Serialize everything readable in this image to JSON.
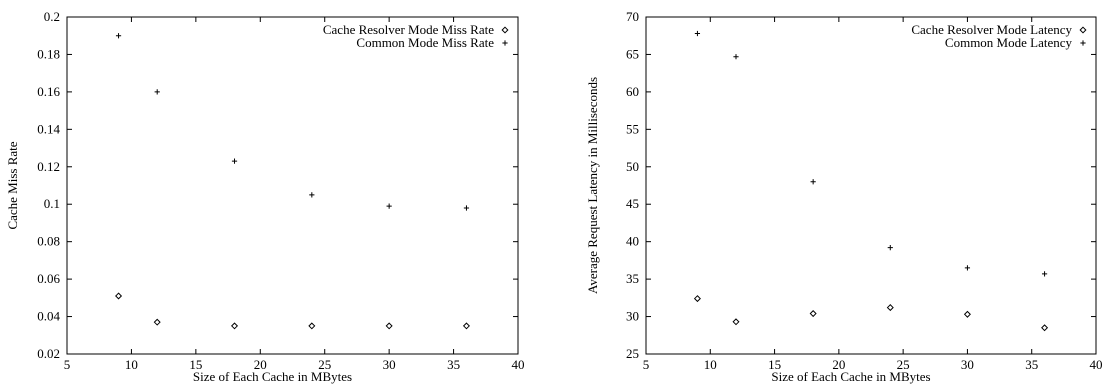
{
  "chart_data": [
    {
      "type": "scatter",
      "title": "",
      "xlabel": "Size of Each Cache in MBytes",
      "ylabel": "Cache Miss Rate",
      "xlim": [
        5,
        40
      ],
      "ylim": [
        0.02,
        0.2
      ],
      "x_ticks": [
        5,
        10,
        15,
        20,
        25,
        30,
        35,
        40
      ],
      "y_ticks": [
        0.02,
        0.04,
        0.06,
        0.08,
        0.1,
        0.12,
        0.14,
        0.16,
        0.18,
        0.2
      ],
      "grid": false,
      "legend_position": "top-right",
      "series": [
        {
          "name": "Cache Resolver Mode Miss Rate",
          "marker": "diamond",
          "points": [
            [
              9,
              0.051
            ],
            [
              12,
              0.037
            ],
            [
              18,
              0.035
            ],
            [
              24,
              0.035
            ],
            [
              30,
              0.035
            ],
            [
              36,
              0.035
            ]
          ]
        },
        {
          "name": "Common Mode Miss Rate",
          "marker": "plus",
          "points": [
            [
              9,
              0.19
            ],
            [
              12,
              0.16
            ],
            [
              18,
              0.123
            ],
            [
              24,
              0.105
            ],
            [
              30,
              0.099
            ],
            [
              36,
              0.098
            ]
          ]
        }
      ]
    },
    {
      "type": "scatter",
      "title": "",
      "xlabel": "Size of Each Cache in MBytes",
      "ylabel": "Average Request Latency in Milliseconds",
      "xlim": [
        5,
        40
      ],
      "ylim": [
        25,
        70
      ],
      "x_ticks": [
        5,
        10,
        15,
        20,
        25,
        30,
        35,
        40
      ],
      "y_ticks": [
        25,
        30,
        35,
        40,
        45,
        50,
        55,
        60,
        65,
        70
      ],
      "grid": false,
      "legend_position": "top-right",
      "series": [
        {
          "name": "Cache Resolver Mode Latency",
          "marker": "diamond",
          "points": [
            [
              9,
              32.4
            ],
            [
              12,
              29.3
            ],
            [
              18,
              30.4
            ],
            [
              24,
              31.2
            ],
            [
              30,
              30.3
            ],
            [
              36,
              28.5
            ]
          ]
        },
        {
          "name": "Common Mode Latency",
          "marker": "plus",
          "points": [
            [
              9,
              67.8
            ],
            [
              12,
              64.7
            ],
            [
              18,
              48.0
            ],
            [
              24,
              39.2
            ],
            [
              30,
              36.5
            ],
            [
              36,
              35.7
            ]
          ]
        }
      ]
    }
  ]
}
